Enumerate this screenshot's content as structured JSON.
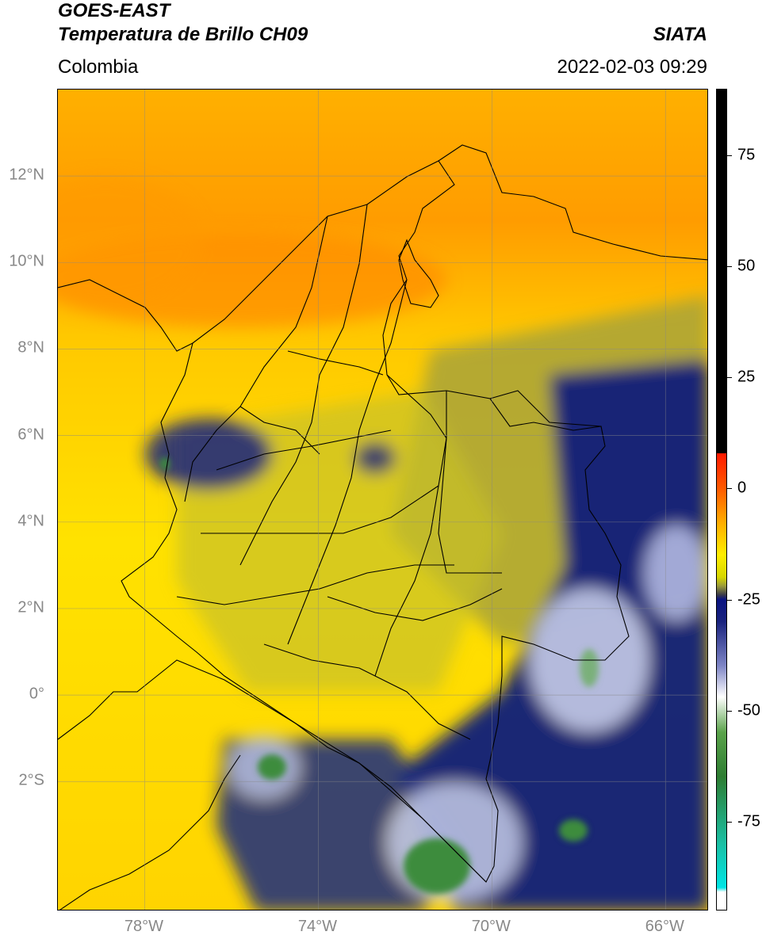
{
  "header": {
    "satellite": "GOES-EAST",
    "product": "Temperatura de Brillo CH09",
    "organization": "SIATA",
    "region": "Colombia",
    "timestamp": "2022-02-03 09:29"
  },
  "map": {
    "lat_range": [
      -5.0,
      14.0
    ],
    "lon_range": [
      -80.0,
      -65.0
    ],
    "lat_ticks": [
      {
        "value": 12,
        "label": "12°N"
      },
      {
        "value": 10,
        "label": "10°N"
      },
      {
        "value": 8,
        "label": "8°N"
      },
      {
        "value": 6,
        "label": "6°N"
      },
      {
        "value": 4,
        "label": "4°N"
      },
      {
        "value": 2,
        "label": "2°N"
      },
      {
        "value": 0,
        "label": "0°"
      },
      {
        "value": -2,
        "label": "2°S"
      }
    ],
    "lon_ticks": [
      {
        "value": -78,
        "label": "78°W"
      },
      {
        "value": -74,
        "label": "74°W"
      },
      {
        "value": -70,
        "label": "70°W"
      },
      {
        "value": -66,
        "label": "66°W"
      }
    ],
    "gridlines": true
  },
  "colorbar": {
    "range": [
      -95,
      90
    ],
    "ticks": [
      {
        "value": 75,
        "label": "75"
      },
      {
        "value": 50,
        "label": "50"
      },
      {
        "value": 25,
        "label": "25"
      },
      {
        "value": 0,
        "label": "0"
      },
      {
        "value": -25,
        "label": "-25"
      },
      {
        "value": -50,
        "label": "-50"
      },
      {
        "value": -75,
        "label": "-75"
      }
    ],
    "stops": [
      {
        "value": 90,
        "color": "#000000"
      },
      {
        "value": 8,
        "color": "#000000"
      },
      {
        "value": 7.9,
        "color": "#ff1a00"
      },
      {
        "value": 0,
        "color": "#ff5a00"
      },
      {
        "value": -8,
        "color": "#ffb000"
      },
      {
        "value": -15,
        "color": "#ffee00"
      },
      {
        "value": -20,
        "color": "#d7d700"
      },
      {
        "value": -22,
        "color": "#9a9a3a"
      },
      {
        "value": -24,
        "color": "#3a3a4a"
      },
      {
        "value": -25,
        "color": "#0a1380"
      },
      {
        "value": -30,
        "color": "#1a237e"
      },
      {
        "value": -40,
        "color": "#7f86c6"
      },
      {
        "value": -47,
        "color": "#ffffff"
      },
      {
        "value": -55,
        "color": "#5aa34a"
      },
      {
        "value": -65,
        "color": "#2e7d32"
      },
      {
        "value": -80,
        "color": "#1bbfa3"
      },
      {
        "value": -90,
        "color": "#00e5e5"
      },
      {
        "value": -91,
        "color": "#ffffff"
      },
      {
        "value": -95,
        "color": "#ffffff"
      }
    ]
  },
  "colors": {
    "warm_sea": "#ffb000",
    "orange_band": "#ff9800",
    "land_yellow": "#ffee00",
    "olive": "#a6a13a",
    "deep_blue": "#0d1b7a",
    "cloud_white": "#eef0ff",
    "cold_green": "#3c8c3c"
  }
}
